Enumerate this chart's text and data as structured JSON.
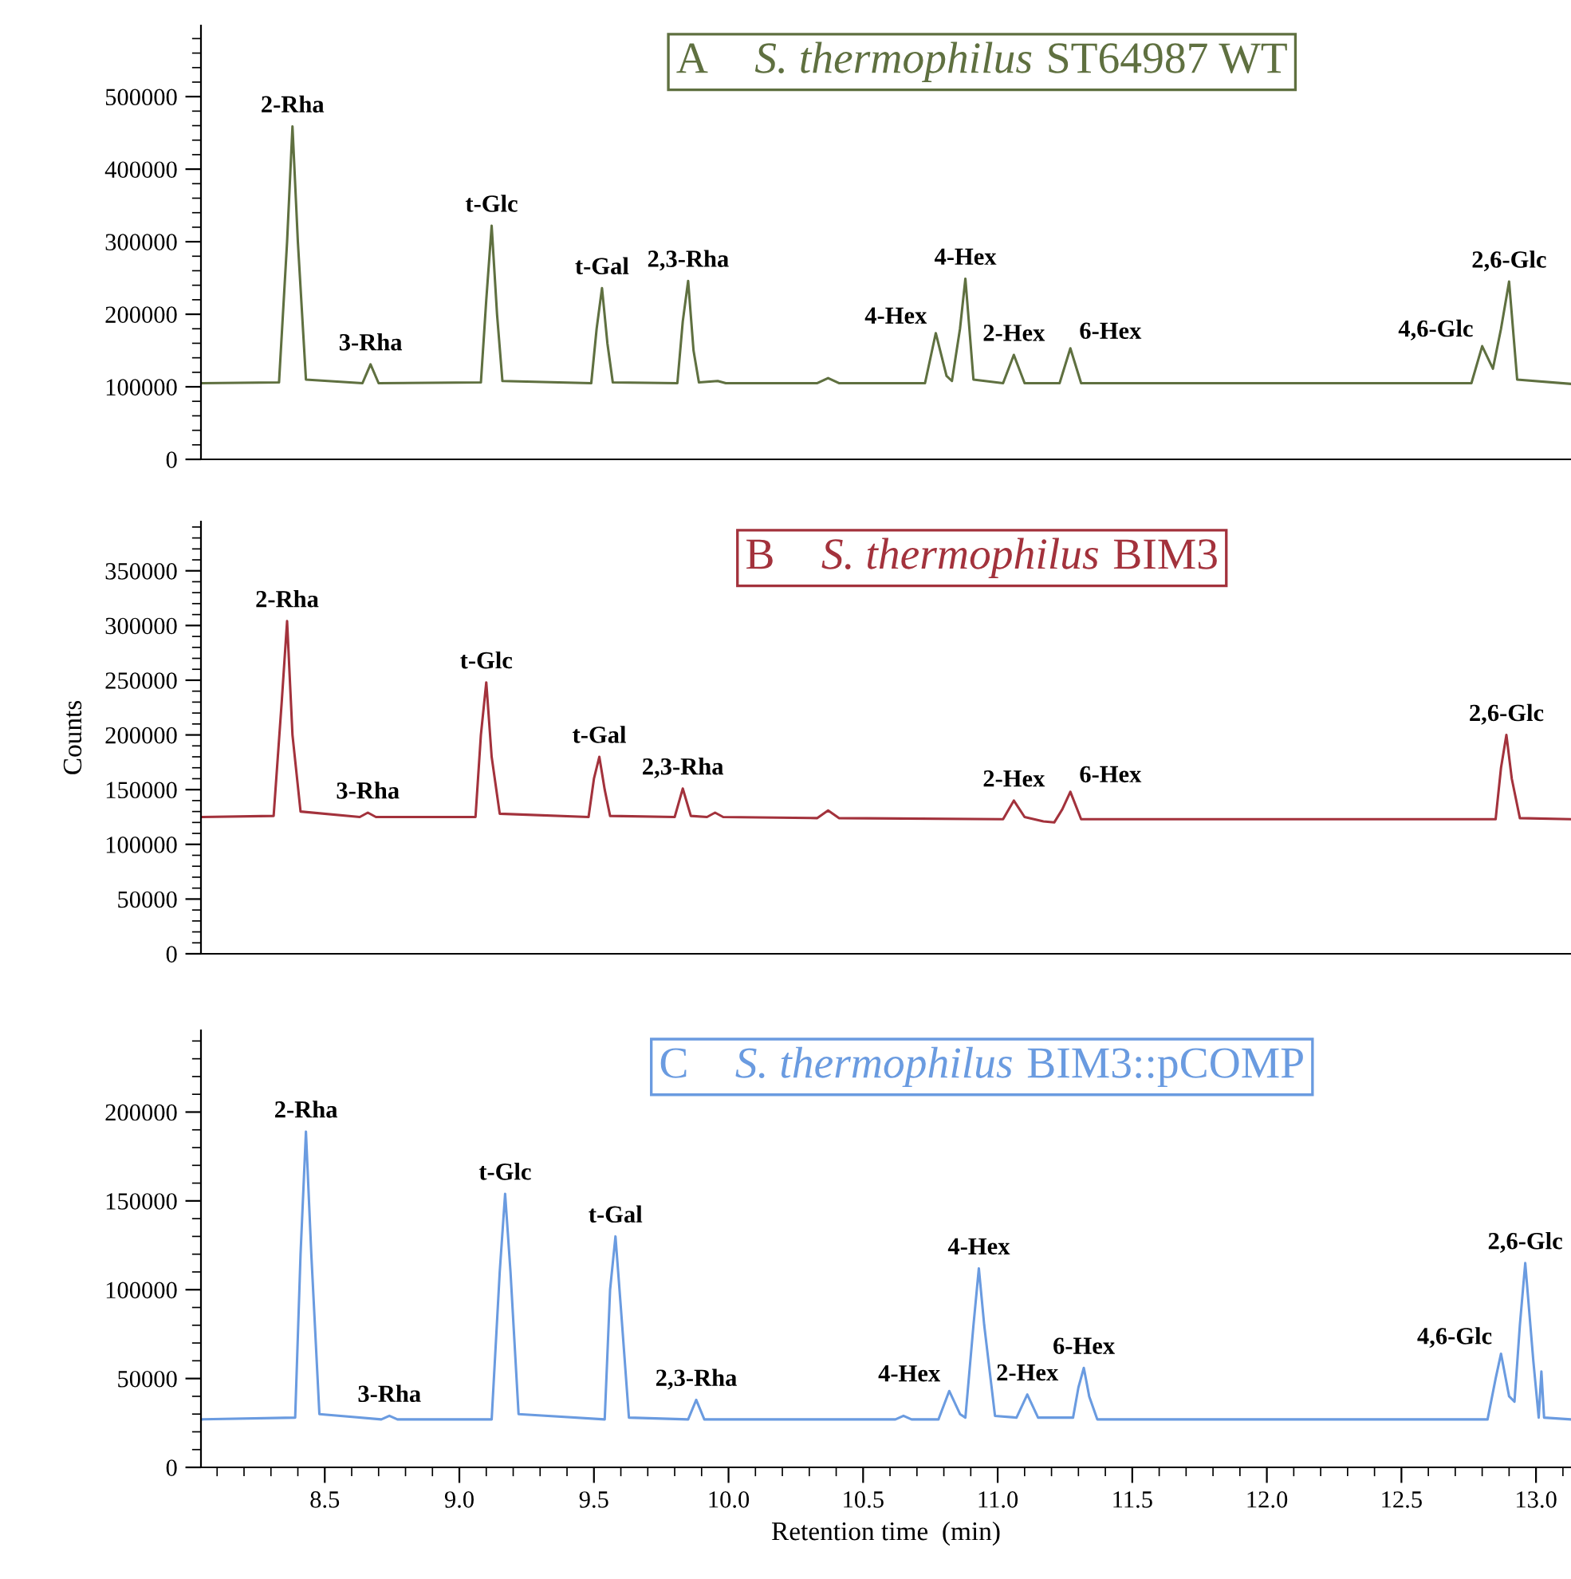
{
  "chart_data": [
    {
      "type": "line",
      "title": "A S. thermophilus ST64987 WT",
      "tick_labels": "y",
      "legend": false,
      "grid": false,
      "xlim": [
        8.04,
        13.13
      ],
      "ylim": [
        0,
        598000
      ],
      "yticks": [
        0,
        100000,
        200000,
        300000,
        400000,
        500000
      ],
      "series": [
        {
          "color": "#5f7040",
          "x": [
            8.04,
            8.33,
            8.36,
            8.38,
            8.4,
            8.43,
            8.64,
            8.67,
            8.7,
            9.08,
            9.1,
            9.12,
            9.14,
            9.16,
            9.49,
            9.51,
            9.53,
            9.55,
            9.57,
            9.81,
            9.83,
            9.85,
            9.87,
            9.89,
            9.96,
            9.99,
            10.33,
            10.37,
            10.41,
            10.73,
            10.77,
            10.81,
            10.83,
            10.86,
            10.88,
            10.91,
            11.02,
            11.06,
            11.1,
            11.23,
            11.27,
            11.31,
            12.76,
            12.8,
            12.84,
            12.87,
            12.9,
            12.93,
            13.13
          ],
          "values": [
            105000,
            106000,
            300000,
            459000,
            300000,
            110000,
            105000,
            131000,
            105000,
            106000,
            220000,
            322000,
            200000,
            108000,
            105000,
            180000,
            236000,
            160000,
            106000,
            105000,
            190000,
            246000,
            150000,
            106000,
            108000,
            105000,
            105000,
            112000,
            105000,
            105000,
            174000,
            115000,
            108000,
            180000,
            249000,
            110000,
            105000,
            144000,
            105000,
            105000,
            153000,
            105000,
            105000,
            156000,
            125000,
            180000,
            245000,
            110000,
            104000
          ]
        }
      ],
      "annotations": [
        {
          "text": "2-Rha",
          "x": 8.38,
          "y": 459000
        },
        {
          "text": "3-Rha",
          "x": 8.67,
          "y": 131000
        },
        {
          "text": "t-Glc",
          "x": 9.12,
          "y": 322000
        },
        {
          "text": "t-Gal",
          "x": 9.53,
          "y": 236000
        },
        {
          "text": "2,3-Rha",
          "x": 9.85,
          "y": 246000
        },
        {
          "text": "4-Hex",
          "x": 10.77,
          "y": 174000
        },
        {
          "text": "4-Hex",
          "x": 10.88,
          "y": 249000
        },
        {
          "text": "2-Hex",
          "x": 11.06,
          "y": 144000
        },
        {
          "text": "6-Hex",
          "x": 11.27,
          "y": 153000
        },
        {
          "text": "4,6-Glc",
          "x": 12.8,
          "y": 156000
        },
        {
          "text": "2,6-Glc",
          "x": 12.9,
          "y": 245000
        }
      ]
    },
    {
      "type": "line",
      "title": "B S. thermophilus BIM3",
      "ylabel": "Counts",
      "tick_labels": "y",
      "legend": false,
      "grid": false,
      "xlim": [
        8.04,
        13.13
      ],
      "ylim": [
        0,
        395000
      ],
      "yticks": [
        0,
        50000,
        100000,
        150000,
        200000,
        250000,
        300000,
        350000
      ],
      "series": [
        {
          "color": "#a3323c",
          "x": [
            8.04,
            8.31,
            8.34,
            8.36,
            8.38,
            8.41,
            8.63,
            8.66,
            8.69,
            9.06,
            9.08,
            9.1,
            9.12,
            9.15,
            9.48,
            9.5,
            9.52,
            9.54,
            9.56,
            9.8,
            9.83,
            9.86,
            9.92,
            9.95,
            9.98,
            10.33,
            10.37,
            10.41,
            11.02,
            11.06,
            11.1,
            11.17,
            11.21,
            11.24,
            11.27,
            11.31,
            12.85,
            12.87,
            12.89,
            12.91,
            12.94,
            13.13
          ],
          "values": [
            125000,
            126000,
            230000,
            304000,
            200000,
            130000,
            125000,
            129000,
            125000,
            125000,
            200000,
            248000,
            180000,
            128000,
            125000,
            160000,
            180000,
            150000,
            126000,
            125000,
            151000,
            126000,
            125000,
            129000,
            125000,
            124000,
            131000,
            124000,
            123000,
            140000,
            125000,
            121000,
            120000,
            132000,
            148000,
            123000,
            123000,
            170000,
            200000,
            160000,
            124000,
            123000
          ]
        }
      ],
      "annotations": [
        {
          "text": "2-Rha",
          "x": 8.36,
          "y": 304000
        },
        {
          "text": "3-Rha",
          "x": 8.66,
          "y": 129000
        },
        {
          "text": "t-Glc",
          "x": 9.1,
          "y": 248000
        },
        {
          "text": "t-Gal",
          "x": 9.52,
          "y": 180000
        },
        {
          "text": "2,3-Rha",
          "x": 9.83,
          "y": 151000
        },
        {
          "text": "2-Hex",
          "x": 11.06,
          "y": 140000
        },
        {
          "text": "6-Hex",
          "x": 11.27,
          "y": 148000
        },
        {
          "text": "2,6-Glc",
          "x": 12.89,
          "y": 200000
        }
      ]
    },
    {
      "type": "line",
      "title": "C S. thermophilus BIM3::pCOMP",
      "xlabel": "Retention time  (min)",
      "legend": false,
      "grid": false,
      "xlim": [
        8.04,
        13.13
      ],
      "ylim": [
        0,
        246000
      ],
      "yticks": [
        0,
        50000,
        100000,
        150000,
        200000
      ],
      "xticks": [
        8.5,
        {
          "value": 9,
          "label": "9.0"
        },
        9.5,
        {
          "value": 10,
          "label": "10.0"
        },
        10.5,
        {
          "value": 11,
          "label": "11.0"
        },
        11.5,
        {
          "value": 12,
          "label": "12.0"
        },
        12.5,
        {
          "value": 13,
          "label": "13.0"
        }
      ],
      "series": [
        {
          "color": "#6a9be0",
          "x": [
            8.04,
            8.39,
            8.41,
            8.43,
            8.45,
            8.48,
            8.71,
            8.74,
            8.77,
            9.12,
            9.15,
            9.17,
            9.19,
            9.22,
            9.54,
            9.56,
            9.58,
            9.6,
            9.63,
            9.85,
            9.88,
            9.91,
            10.62,
            10.65,
            10.68,
            10.78,
            10.82,
            10.86,
            10.88,
            10.91,
            10.93,
            10.95,
            10.99,
            11.07,
            11.11,
            11.15,
            11.28,
            11.3,
            11.32,
            11.34,
            11.37,
            12.82,
            12.85,
            12.87,
            12.9,
            12.92,
            12.94,
            12.96,
            12.99,
            13.01,
            13.02,
            13.03,
            13.13
          ],
          "values": [
            27000,
            28000,
            120000,
            189000,
            120000,
            30000,
            27000,
            29000,
            27000,
            27000,
            110000,
            154000,
            110000,
            30000,
            27000,
            100000,
            130000,
            90000,
            28000,
            27000,
            38000,
            27000,
            27000,
            29000,
            27000,
            27000,
            43000,
            30000,
            28000,
            80000,
            112000,
            80000,
            29000,
            28000,
            41000,
            28000,
            28000,
            45000,
            56000,
            40000,
            27000,
            27000,
            50000,
            64000,
            40000,
            37000,
            80000,
            115000,
            60000,
            28000,
            54000,
            28000,
            27000
          ]
        }
      ],
      "annotations": [
        {
          "text": "2-Rha",
          "x": 8.43,
          "y": 189000
        },
        {
          "text": "3-Rha",
          "x": 8.74,
          "y": 29000
        },
        {
          "text": "t-Glc",
          "x": 9.17,
          "y": 154000
        },
        {
          "text": "t-Gal",
          "x": 9.58,
          "y": 130000
        },
        {
          "text": "2,3-Rha",
          "x": 9.88,
          "y": 38000
        },
        {
          "text": "4-Hex",
          "x": 10.82,
          "y": 43000
        },
        {
          "text": "4-Hex",
          "x": 10.93,
          "y": 112000
        },
        {
          "text": "2-Hex",
          "x": 11.11,
          "y": 41000
        },
        {
          "text": "6-Hex",
          "x": 11.32,
          "y": 56000
        },
        {
          "text": "4,6-Glc",
          "x": 12.87,
          "y": 64000
        },
        {
          "text": "2,6-Glc",
          "x": 12.96,
          "y": 115000
        }
      ]
    }
  ]
}
